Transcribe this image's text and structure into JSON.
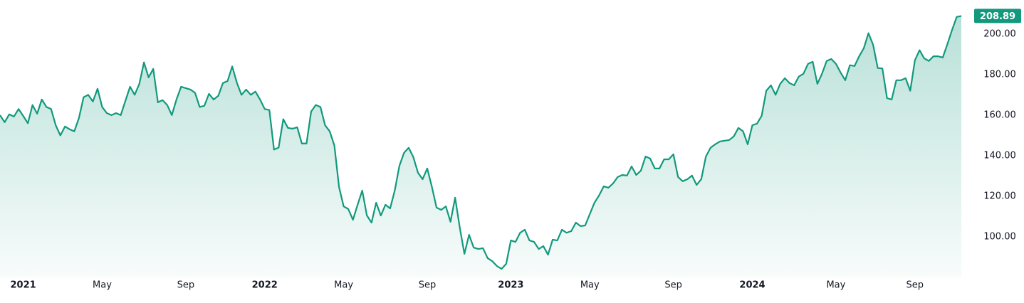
{
  "chart_data": {
    "type": "area",
    "color": "#12997d",
    "grid": false,
    "ylim": [
      80,
      215
    ],
    "yticks": [
      {
        "value": 100,
        "label": "100.00"
      },
      {
        "value": 120,
        "label": "120.00"
      },
      {
        "value": 140,
        "label": "140.00"
      },
      {
        "value": 160,
        "label": "160.00"
      },
      {
        "value": 180,
        "label": "180.00"
      },
      {
        "value": 200,
        "label": "200.00"
      }
    ],
    "categories": [
      null,
      null,
      null,
      null,
      null,
      "2021",
      null,
      null,
      null,
      null,
      null,
      null,
      null,
      null,
      null,
      null,
      null,
      null,
      null,
      null,
      null,
      null,
      "May",
      null,
      null,
      null,
      null,
      null,
      null,
      null,
      null,
      null,
      null,
      null,
      null,
      null,
      null,
      null,
      null,
      null,
      "Sep",
      null,
      null,
      null,
      null,
      null,
      null,
      null,
      null,
      null,
      null,
      null,
      null,
      null,
      null,
      null,
      null,
      "2022",
      null,
      null,
      null,
      null,
      null,
      null,
      null,
      null,
      null,
      null,
      null,
      null,
      null,
      null,
      null,
      null,
      "May",
      null,
      null,
      null,
      null,
      null,
      null,
      null,
      null,
      null,
      null,
      null,
      null,
      null,
      null,
      null,
      null,
      null,
      "Sep",
      null,
      null,
      null,
      null,
      null,
      null,
      null,
      null,
      null,
      null,
      null,
      null,
      null,
      null,
      null,
      null,
      null,
      "2023",
      null,
      null,
      null,
      null,
      null,
      null,
      null,
      null,
      null,
      null,
      null,
      null,
      null,
      null,
      null,
      null,
      "May",
      null,
      null,
      null,
      null,
      null,
      null,
      null,
      null,
      null,
      null,
      null,
      null,
      null,
      null,
      null,
      null,
      null,
      "Sep",
      null,
      null,
      null,
      null,
      null,
      null,
      null,
      null,
      null,
      null,
      null,
      null,
      null,
      null,
      null,
      null,
      "2024",
      null,
      null,
      null,
      null,
      null,
      null,
      null,
      null,
      null,
      null,
      null,
      null,
      null,
      null,
      null,
      null,
      null,
      "May",
      null,
      null,
      null,
      null,
      null,
      null,
      null,
      null,
      null,
      null,
      null,
      null,
      null,
      null,
      null,
      null,
      "Sep",
      null,
      null,
      null,
      null,
      null,
      null,
      null,
      null,
      null,
      null
    ],
    "values": [
      160,
      156.5,
      160.4,
      159.3,
      163,
      159.6,
      156,
      165,
      160.7,
      167.7,
      164,
      163,
      155,
      150,
      154.4,
      153,
      152,
      158.6,
      168.8,
      170,
      166.7,
      173,
      164,
      161,
      160,
      161,
      160,
      167,
      174,
      170,
      175.4,
      186,
      178.6,
      182.8,
      166.3,
      167.4,
      165,
      160,
      167.7,
      174,
      173.3,
      172.6,
      171,
      164,
      164.6,
      170.5,
      167.7,
      169.5,
      175.8,
      176.8,
      184,
      176,
      170,
      172.6,
      170,
      171.6,
      167.7,
      163,
      162.5,
      143,
      144,
      158,
      153.7,
      153.3,
      154,
      146,
      146,
      161.8,
      165,
      164,
      155,
      152,
      145,
      124.6,
      115,
      113.7,
      108.4,
      115.8,
      122.8,
      110.5,
      107,
      116.8,
      110.5,
      115.8,
      114,
      122.8,
      135,
      141.4,
      143.9,
      139.3,
      131.6,
      128.4,
      133.7,
      124.6,
      114.4,
      113.3,
      115,
      107.4,
      119.3,
      104.6,
      91.6,
      101,
      94.7,
      94,
      94.4,
      89.5,
      88,
      85.6,
      84.2,
      86.7,
      98.2,
      97.5,
      102,
      103.5,
      98.2,
      97.5,
      94,
      95.4,
      91.2,
      98.6,
      98.2,
      103.5,
      102,
      102.8,
      107,
      105.3,
      105.6,
      111.2,
      116.8,
      120.4,
      124.9,
      124.2,
      126.3,
      129.5,
      130.5,
      130.2,
      134.7,
      130.5,
      132.6,
      139.6,
      138.6,
      133.7,
      133.7,
      138.2,
      138.2,
      140.7,
      129.5,
      127.4,
      128.4,
      130.2,
      125.6,
      128.4,
      139.6,
      143.9,
      145.6,
      147,
      147.4,
      147.7,
      149.5,
      153.7,
      152,
      145.6,
      155,
      155.8,
      159.6,
      172,
      174.7,
      170,
      175.4,
      178.2,
      175.8,
      174.7,
      179,
      180.4,
      185.3,
      186.3,
      175.4,
      180.4,
      186.7,
      187.7,
      185.3,
      181,
      177.2,
      184.6,
      184.2,
      189,
      193,
      200.4,
      194.7,
      183.2,
      183,
      168.4,
      167.7,
      177.2,
      177.2,
      178.2,
      172,
      187,
      192,
      188,
      186.7,
      189,
      189,
      188.4,
      195,
      202,
      208.4,
      208.89
    ]
  }
}
